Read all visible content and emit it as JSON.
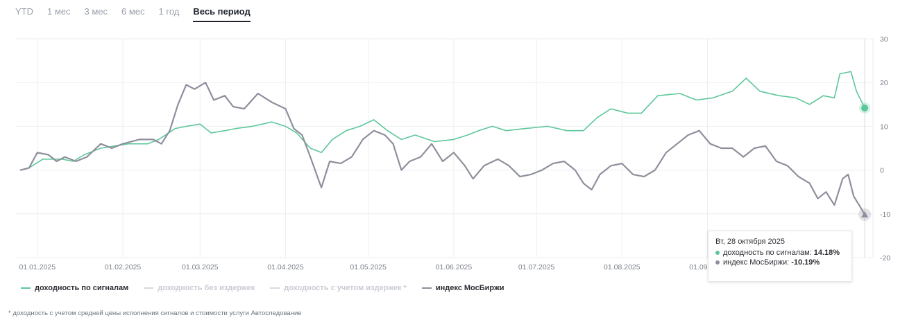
{
  "tabs": [
    {
      "label": "YTD",
      "active": false
    },
    {
      "label": "1 мес",
      "active": false
    },
    {
      "label": "3 мес",
      "active": false
    },
    {
      "label": "6 мес",
      "active": false
    },
    {
      "label": "1 год",
      "active": false
    },
    {
      "label": "Весь период",
      "active": true
    }
  ],
  "legend": [
    {
      "label": "доходность по сигналам",
      "color": "#5cc79a",
      "active": true
    },
    {
      "label": "доходность без издержек",
      "color": "#d6d9de",
      "active": false
    },
    {
      "label": "доходность с учетом издержек *",
      "color": "#d6d9de",
      "active": false
    },
    {
      "label": "индекс МосБиржи",
      "color": "#8e8f9c",
      "active": true
    }
  ],
  "footnote": "* доходность с учетом средней цены исполнения сигналов и стоимости услуги Автоследование",
  "tooltip": {
    "date": "Вт, 28 октября 2025",
    "rows": [
      {
        "label": "доходность по сигналам:",
        "value": "14.18%",
        "color": "#5cc79a"
      },
      {
        "label": "индекс МосБиржи:",
        "value": "-10.19%",
        "color": "#8e8f9c"
      }
    ]
  },
  "chart_data": {
    "type": "line",
    "x_tick_labels": [
      "01.01.2025",
      "01.02.2025",
      "01.03.2025",
      "01.04.2025",
      "01.05.2025",
      "01.06.2025",
      "01.07.2025",
      "01.08.2025",
      "01.09.2025"
    ],
    "y_ticks": [
      30,
      20,
      10,
      0,
      -10,
      -20
    ],
    "ylim": [
      -20,
      30
    ],
    "xlim": [
      "2024-12-24",
      "2025-10-31"
    ],
    "grid": true,
    "legend_placement": "bottom-left",
    "series": [
      {
        "name": "доходность по сигналам",
        "color": "#5cc79a",
        "points": [
          [
            "2024-12-26",
            0
          ],
          [
            "2024-12-29",
            0.5
          ],
          [
            "2025-01-03",
            2.5
          ],
          [
            "2025-01-10",
            2.5
          ],
          [
            "2025-01-14",
            2
          ],
          [
            "2025-01-18",
            3.5
          ],
          [
            "2025-01-24",
            5
          ],
          [
            "2025-01-29",
            5.5
          ],
          [
            "2025-02-03",
            6
          ],
          [
            "2025-02-10",
            6
          ],
          [
            "2025-02-14",
            7
          ],
          [
            "2025-02-20",
            9.5
          ],
          [
            "2025-02-24",
            10
          ],
          [
            "2025-03-01",
            10.5
          ],
          [
            "2025-03-05",
            8.5
          ],
          [
            "2025-03-10",
            9
          ],
          [
            "2025-03-14",
            9.5
          ],
          [
            "2025-03-20",
            10
          ],
          [
            "2025-03-27",
            11
          ],
          [
            "2025-04-01",
            10
          ],
          [
            "2025-04-05",
            8.5
          ],
          [
            "2025-04-10",
            5
          ],
          [
            "2025-04-14",
            4
          ],
          [
            "2025-04-18",
            7
          ],
          [
            "2025-04-23",
            9
          ],
          [
            "2025-04-28",
            10
          ],
          [
            "2025-05-03",
            11.5
          ],
          [
            "2025-05-08",
            9
          ],
          [
            "2025-05-13",
            7
          ],
          [
            "2025-05-18",
            8
          ],
          [
            "2025-05-25",
            6.5
          ],
          [
            "2025-06-01",
            7
          ],
          [
            "2025-06-06",
            8
          ],
          [
            "2025-06-10",
            9
          ],
          [
            "2025-06-15",
            10
          ],
          [
            "2025-06-20",
            9
          ],
          [
            "2025-06-27",
            9.5
          ],
          [
            "2025-07-05",
            10
          ],
          [
            "2025-07-12",
            9
          ],
          [
            "2025-07-18",
            9
          ],
          [
            "2025-07-23",
            12
          ],
          [
            "2025-07-28",
            14
          ],
          [
            "2025-08-03",
            13
          ],
          [
            "2025-08-08",
            13
          ],
          [
            "2025-08-14",
            17
          ],
          [
            "2025-08-22",
            17.5
          ],
          [
            "2025-08-28",
            16
          ],
          [
            "2025-09-03",
            16.5
          ],
          [
            "2025-09-10",
            18
          ],
          [
            "2025-09-15",
            21
          ],
          [
            "2025-09-20",
            18
          ],
          [
            "2025-09-27",
            17
          ],
          [
            "2025-10-03",
            16.5
          ],
          [
            "2025-10-08",
            15
          ],
          [
            "2025-10-13",
            17
          ],
          [
            "2025-10-17",
            16.5
          ],
          [
            "2025-10-19",
            22
          ],
          [
            "2025-10-23",
            22.5
          ],
          [
            "2025-10-25",
            18
          ],
          [
            "2025-10-28",
            14.18
          ]
        ]
      },
      {
        "name": "индекс МосБиржи",
        "color": "#8e8f9c",
        "points": [
          [
            "2024-12-26",
            0
          ],
          [
            "2024-12-29",
            0.5
          ],
          [
            "2025-01-01",
            4
          ],
          [
            "2025-01-05",
            3.5
          ],
          [
            "2025-01-08",
            2
          ],
          [
            "2025-01-11",
            3
          ],
          [
            "2025-01-15",
            2
          ],
          [
            "2025-01-19",
            3
          ],
          [
            "2025-01-24",
            6
          ],
          [
            "2025-01-28",
            5
          ],
          [
            "2025-02-01",
            6
          ],
          [
            "2025-02-07",
            7
          ],
          [
            "2025-02-12",
            7
          ],
          [
            "2025-02-15",
            6
          ],
          [
            "2025-02-18",
            9
          ],
          [
            "2025-02-21",
            15
          ],
          [
            "2025-02-24",
            19.5
          ],
          [
            "2025-02-27",
            18.5
          ],
          [
            "2025-03-03",
            20
          ],
          [
            "2025-03-06",
            16
          ],
          [
            "2025-03-10",
            17
          ],
          [
            "2025-03-13",
            14.5
          ],
          [
            "2025-03-17",
            14
          ],
          [
            "2025-03-22",
            17.5
          ],
          [
            "2025-03-27",
            15.5
          ],
          [
            "2025-04-01",
            14
          ],
          [
            "2025-04-04",
            9.5
          ],
          [
            "2025-04-07",
            8
          ],
          [
            "2025-04-10",
            3
          ],
          [
            "2025-04-14",
            -4
          ],
          [
            "2025-04-17",
            2
          ],
          [
            "2025-04-21",
            1.5
          ],
          [
            "2025-04-25",
            3
          ],
          [
            "2025-04-29",
            7
          ],
          [
            "2025-05-03",
            9
          ],
          [
            "2025-05-07",
            8
          ],
          [
            "2025-05-10",
            6
          ],
          [
            "2025-05-13",
            0
          ],
          [
            "2025-05-16",
            2
          ],
          [
            "2025-05-20",
            3
          ],
          [
            "2025-05-24",
            6
          ],
          [
            "2025-05-28",
            2
          ],
          [
            "2025-06-01",
            4
          ],
          [
            "2025-06-05",
            1
          ],
          [
            "2025-06-08",
            -2
          ],
          [
            "2025-06-12",
            1
          ],
          [
            "2025-06-17",
            2.5
          ],
          [
            "2025-06-21",
            1
          ],
          [
            "2025-06-25",
            -1.5
          ],
          [
            "2025-06-29",
            -1
          ],
          [
            "2025-07-03",
            0
          ],
          [
            "2025-07-07",
            1.5
          ],
          [
            "2025-07-11",
            2
          ],
          [
            "2025-07-15",
            0
          ],
          [
            "2025-07-18",
            -3
          ],
          [
            "2025-07-21",
            -4.5
          ],
          [
            "2025-07-24",
            -1
          ],
          [
            "2025-07-28",
            1
          ],
          [
            "2025-08-01",
            1.5
          ],
          [
            "2025-08-05",
            -1
          ],
          [
            "2025-08-09",
            -1.5
          ],
          [
            "2025-08-13",
            0
          ],
          [
            "2025-08-17",
            4
          ],
          [
            "2025-08-21",
            6
          ],
          [
            "2025-08-25",
            8
          ],
          [
            "2025-08-29",
            9
          ],
          [
            "2025-09-02",
            6
          ],
          [
            "2025-09-06",
            5
          ],
          [
            "2025-09-10",
            5
          ],
          [
            "2025-09-14",
            3
          ],
          [
            "2025-09-18",
            5
          ],
          [
            "2025-09-22",
            5.5
          ],
          [
            "2025-09-26",
            2
          ],
          [
            "2025-09-30",
            1
          ],
          [
            "2025-10-04",
            -1.5
          ],
          [
            "2025-10-08",
            -3
          ],
          [
            "2025-10-11",
            -6.5
          ],
          [
            "2025-10-14",
            -5
          ],
          [
            "2025-10-17",
            -8
          ],
          [
            "2025-10-20",
            -2
          ],
          [
            "2025-10-22",
            -1
          ],
          [
            "2025-10-24",
            -6
          ],
          [
            "2025-10-26",
            -8
          ],
          [
            "2025-10-28",
            -10.19
          ]
        ]
      }
    ]
  }
}
